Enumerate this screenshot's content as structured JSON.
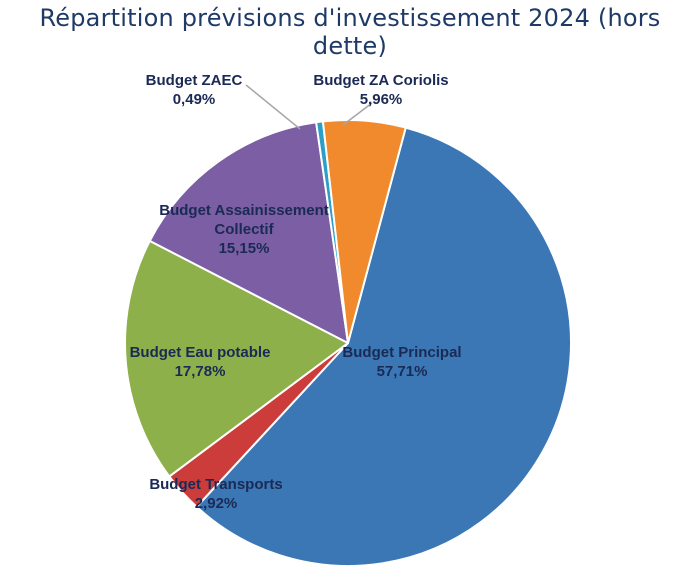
{
  "chart_data": {
    "type": "pie",
    "title": "Répartition prévisions d'investissement 2024 (hors dette)",
    "slices": [
      {
        "name": "Budget Principal",
        "value": 57.71,
        "label_lines": [
          "Budget Principal"
        ],
        "pct": "57,71%",
        "color": "#3a77b4"
      },
      {
        "name": "Budget Transports",
        "value": 2.92,
        "label_lines": [
          "Budget Transports"
        ],
        "pct": "2,92%",
        "color": "#cc3c3a"
      },
      {
        "name": "Budget Eau potable",
        "value": 17.78,
        "label_lines": [
          "Budget Eau potable"
        ],
        "pct": "17,78%",
        "color": "#8db04a"
      },
      {
        "name": "Budget Assainissement Collectif",
        "value": 15.15,
        "label_lines": [
          "Budget Assainissement",
          "Collectif"
        ],
        "pct": "15,15%",
        "color": "#7b5ea3"
      },
      {
        "name": "Budget ZAEC",
        "value": 0.49,
        "label_lines": [
          "Budget ZAEC"
        ],
        "pct": "0,49%",
        "color": "#2b9fc6"
      },
      {
        "name": "Budget ZA Coriolis",
        "value": 5.96,
        "label_lines": [
          "Budget ZA Coriolis"
        ],
        "pct": "5,96%",
        "color": "#f08a2c"
      }
    ]
  }
}
